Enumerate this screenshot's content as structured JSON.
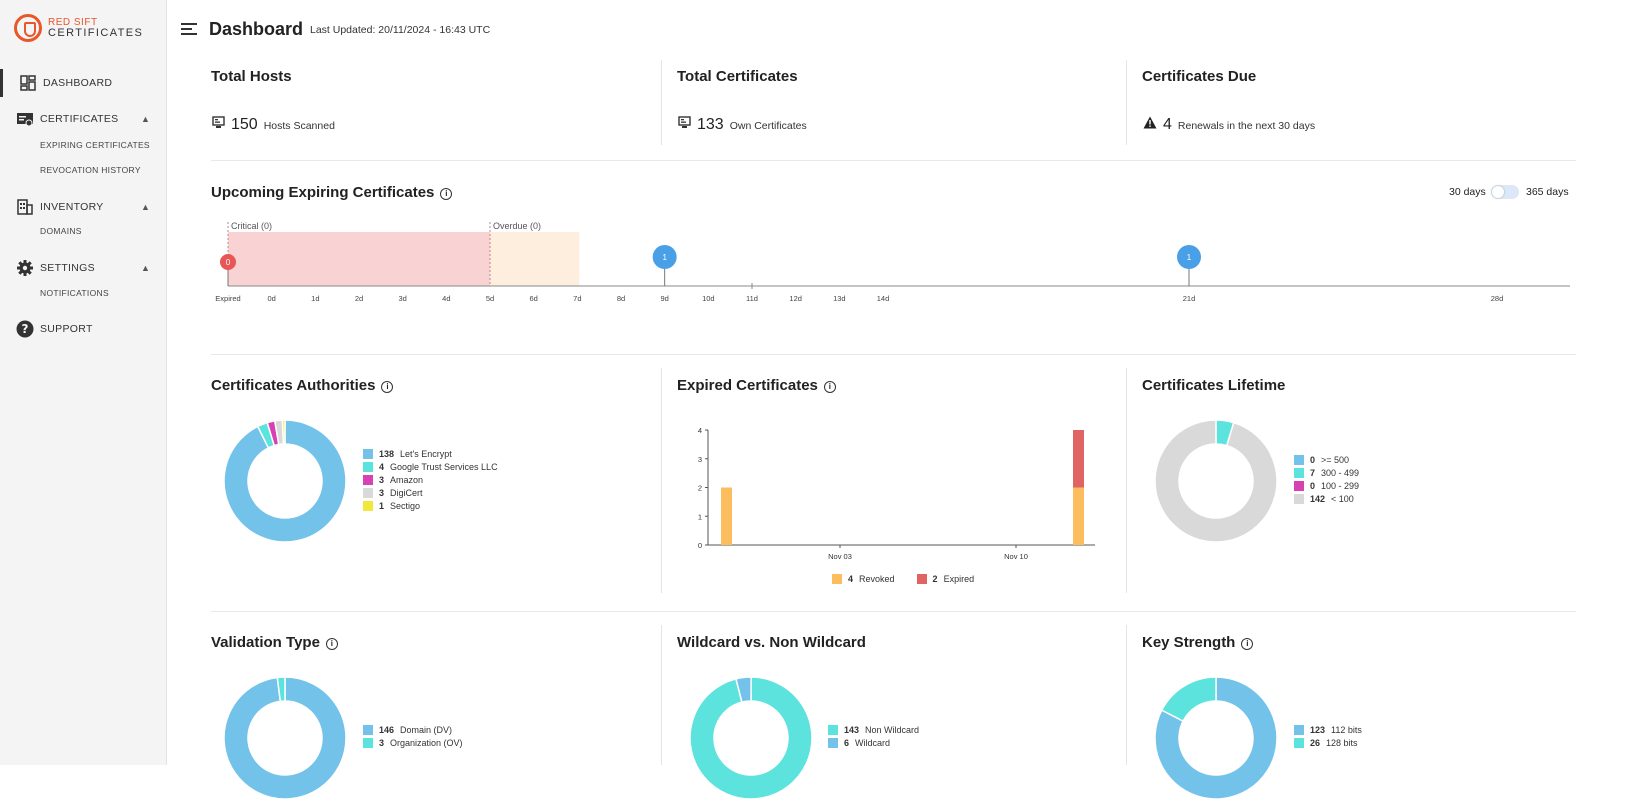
{
  "brand": {
    "line1": "RED SIFT",
    "line2": "CERTIFICATES"
  },
  "nav": {
    "dashboard": "DASHBOARD",
    "certificates": "CERTIFICATES",
    "expiring": "EXPIRING CERTIFICATES",
    "revocation": "REVOCATION HISTORY",
    "inventory": "INVENTORY",
    "domains": "DOMAINS",
    "settings": "SETTINGS",
    "notifications": "NOTIFICATIONS",
    "support": "SUPPORT"
  },
  "header": {
    "title": "Dashboard",
    "updated": "Last Updated: 20/11/2024 - 16:43 UTC"
  },
  "stats": {
    "hosts": {
      "title": "Total Hosts",
      "value": "150",
      "label": "Hosts Scanned"
    },
    "certs": {
      "title": "Total Certificates",
      "value": "133",
      "label": "Own Certificates"
    },
    "due": {
      "title": "Certificates Due",
      "value": "4",
      "label": "Renewals in the next 30 days"
    }
  },
  "timeline": {
    "title": "Upcoming Expiring Certificates",
    "toggle_left": "30 days",
    "toggle_right": "365 days",
    "critical_label": "Critical (0)",
    "overdue_label": "Overdue (0)",
    "ticks": [
      "Expired",
      "0d",
      "1d",
      "2d",
      "3d",
      "4d",
      "5d",
      "6d",
      "7d",
      "8d",
      "9d",
      "10d",
      "11d",
      "12d",
      "13d",
      "14d",
      "21d",
      "28d"
    ],
    "markers": [
      {
        "day": "Expired",
        "count": "0",
        "color": "#e85656"
      },
      {
        "day": "9d",
        "count": "1",
        "color": "#4aa0e6"
      },
      {
        "day": "21d",
        "count": "1",
        "color": "#4aa0e6"
      }
    ]
  },
  "authorities": {
    "title": "Certificates Authorities",
    "items": [
      {
        "count": "138",
        "name": "Let's Encrypt",
        "color": "#73c2ea"
      },
      {
        "count": "4",
        "name": "Google Trust Services LLC",
        "color": "#5de3de"
      },
      {
        "count": "3",
        "name": "Amazon",
        "color": "#d642b4"
      },
      {
        "count": "3",
        "name": "DigiCert",
        "color": "#d9d9d9"
      },
      {
        "count": "1",
        "name": "Sectigo",
        "color": "#f2e83a"
      }
    ]
  },
  "expired": {
    "title": "Expired Certificates",
    "legend": [
      {
        "count": "4",
        "name": "Revoked",
        "color": "#fbbd5e"
      },
      {
        "count": "2",
        "name": "Expired",
        "color": "#e06464"
      }
    ]
  },
  "lifetime": {
    "title": "Certificates Lifetime",
    "items": [
      {
        "count": "0",
        "name": ">= 500",
        "color": "#73c2ea"
      },
      {
        "count": "7",
        "name": "300 - 499",
        "color": "#5de3de"
      },
      {
        "count": "0",
        "name": "100 - 299",
        "color": "#d642b4"
      },
      {
        "count": "142",
        "name": "< 100",
        "color": "#d9d9d9"
      }
    ]
  },
  "validation": {
    "title": "Validation Type",
    "items": [
      {
        "count": "146",
        "name": "Domain (DV)",
        "color": "#73c2ea"
      },
      {
        "count": "3",
        "name": "Organization (OV)",
        "color": "#5de3de"
      }
    ]
  },
  "wildcard": {
    "title": "Wildcard vs. Non Wildcard",
    "items": [
      {
        "count": "143",
        "name": "Non Wildcard",
        "color": "#5de3de"
      },
      {
        "count": "6",
        "name": "Wildcard",
        "color": "#73c2ea"
      }
    ]
  },
  "keystrength": {
    "title": "Key Strength",
    "items": [
      {
        "count": "123",
        "name": "112 bits",
        "color": "#73c2ea"
      },
      {
        "count": "26",
        "name": "128 bits",
        "color": "#5de3de"
      }
    ]
  },
  "chart_data": [
    {
      "type": "bar",
      "title": "Expired Certificates",
      "xlabel": "",
      "ylabel": "",
      "ylim": [
        0,
        4
      ],
      "yticks": [
        0,
        1,
        2,
        3,
        4
      ],
      "xtick_labels": [
        "Nov 03",
        "Nov 10"
      ],
      "bars": [
        {
          "position": "start",
          "Revoked": 2,
          "Expired": 0
        },
        {
          "position": "end",
          "Revoked": 2,
          "Expired": 2
        }
      ],
      "series": [
        {
          "name": "Revoked"
        },
        {
          "name": "Expired"
        }
      ]
    }
  ]
}
